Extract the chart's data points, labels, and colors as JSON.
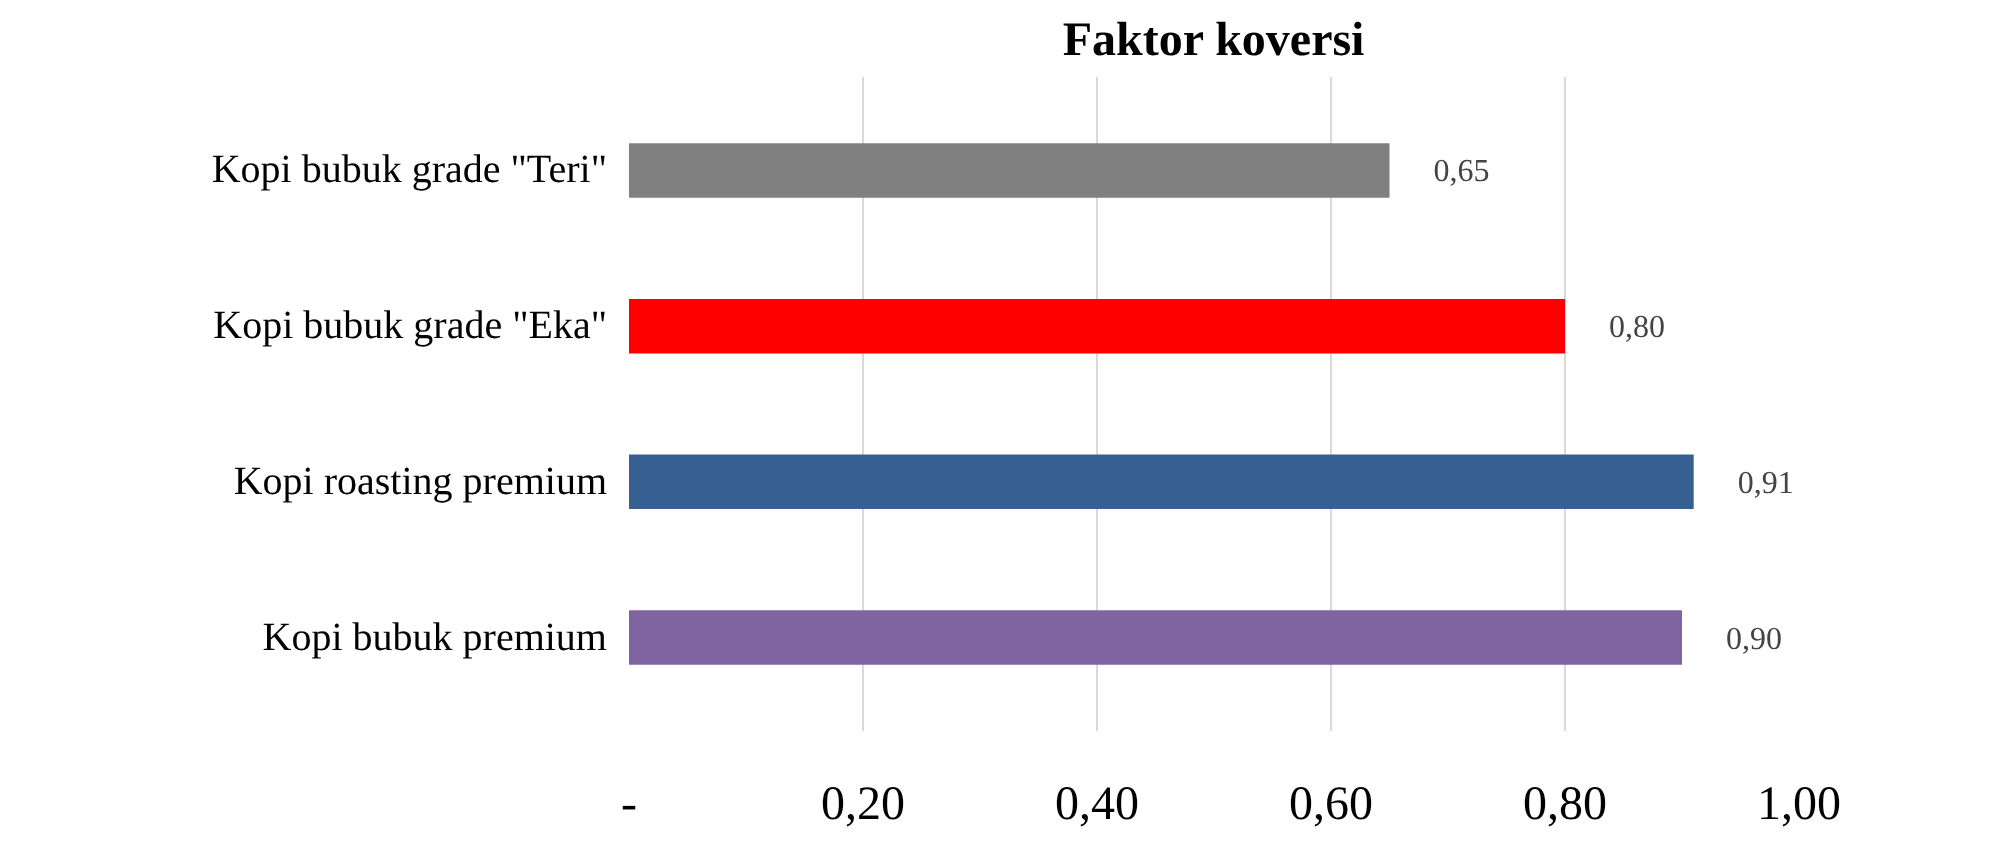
{
  "chart_data": {
    "type": "bar",
    "orientation": "horizontal",
    "title": "Faktor koversi",
    "categories": [
      "Kopi bubuk grade \"Teri\"",
      "Kopi bubuk grade \"Eka\"",
      "Kopi roasting premium",
      "Kopi bubuk premium"
    ],
    "values": [
      0.65,
      0.8,
      0.91,
      0.9
    ],
    "colors": [
      "#808080",
      "#ff0000",
      "#376092",
      "#8064a2"
    ],
    "value_labels": [
      "0,65",
      "0,80",
      "0,91",
      "0,90"
    ],
    "xlim": [
      0,
      1.0
    ],
    "xticks": [
      {
        "value": 0,
        "label": "-"
      },
      {
        "value": 0.2,
        "label": "0,20"
      },
      {
        "value": 0.4,
        "label": "0,40"
      },
      {
        "value": 0.6,
        "label": "0,60"
      },
      {
        "value": 0.8,
        "label": "0,80"
      },
      {
        "value": 1.0,
        "label": "1,00"
      }
    ],
    "grid": "x"
  }
}
